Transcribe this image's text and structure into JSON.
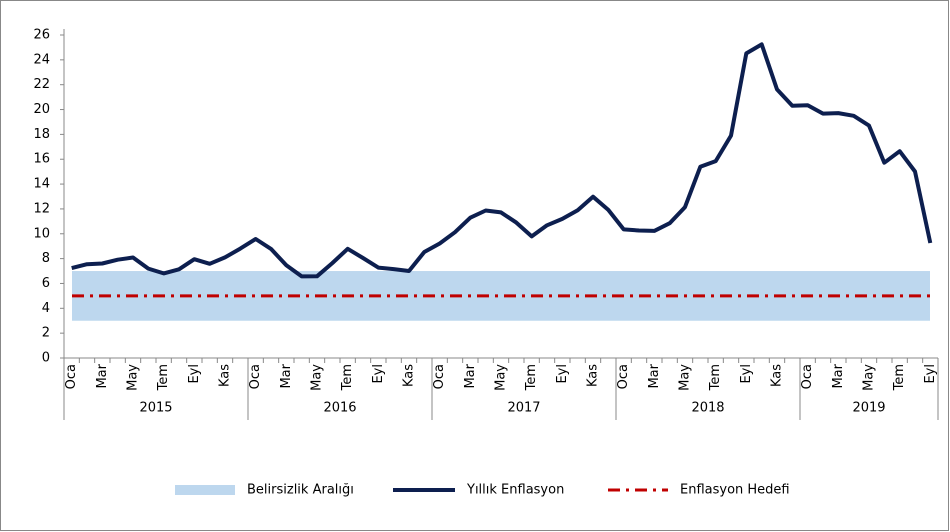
{
  "chart_data": {
    "type": "line",
    "categories": [
      "Oca",
      null,
      "Mar",
      null,
      "May",
      null,
      "Tem",
      null,
      "Eyl",
      null,
      "Kas",
      null,
      "Oca",
      null,
      "Mar",
      null,
      "May",
      null,
      "Tem",
      null,
      "Eyl",
      null,
      "Kas",
      null,
      "Oca",
      null,
      "Mar",
      null,
      "May",
      null,
      "Tem",
      null,
      "Eyl",
      null,
      "Kas",
      null,
      "Oca",
      null,
      "Mar",
      null,
      "May",
      null,
      "Tem",
      null,
      "Eyl",
      null,
      "Kas",
      null,
      "Oca",
      null,
      "Mar",
      null,
      "May",
      null,
      "Tem",
      null,
      "Eyl"
    ],
    "year_groups": [
      "2015",
      "2016",
      "2017",
      "2018",
      "2019"
    ],
    "series": [
      {
        "name": "Yıllık Enflasyon",
        "color": "#0d1f4f",
        "values": [
          7.24,
          7.55,
          7.61,
          7.91,
          8.09,
          7.2,
          6.81,
          7.14,
          7.95,
          7.58,
          8.1,
          8.81,
          9.58,
          8.78,
          7.46,
          6.57,
          6.58,
          7.64,
          8.79,
          8.05,
          7.28,
          7.16,
          7.0,
          8.53,
          9.22,
          10.13,
          11.29,
          11.87,
          11.72,
          10.9,
          9.79,
          10.68,
          11.2,
          11.9,
          12.98,
          11.92,
          10.35,
          10.26,
          10.23,
          10.85,
          12.15,
          15.39,
          15.85,
          17.9,
          24.52,
          25.24,
          21.62,
          20.3,
          20.35,
          19.67,
          19.71,
          19.5,
          18.71,
          15.72,
          16.65,
          15.01,
          9.26
        ]
      }
    ],
    "band": {
      "name": "Belirsizlik Aralığı",
      "color": "#bdd7ee",
      "lower": 3,
      "upper": 7
    },
    "target": {
      "name": "Enflasyon Hedefi",
      "color": "#c00000",
      "value": 5
    },
    "ylim": [
      0,
      26
    ],
    "yticks": [
      0,
      2,
      4,
      6,
      8,
      10,
      12,
      14,
      16,
      18,
      20,
      22,
      24,
      26
    ],
    "grid": false
  }
}
